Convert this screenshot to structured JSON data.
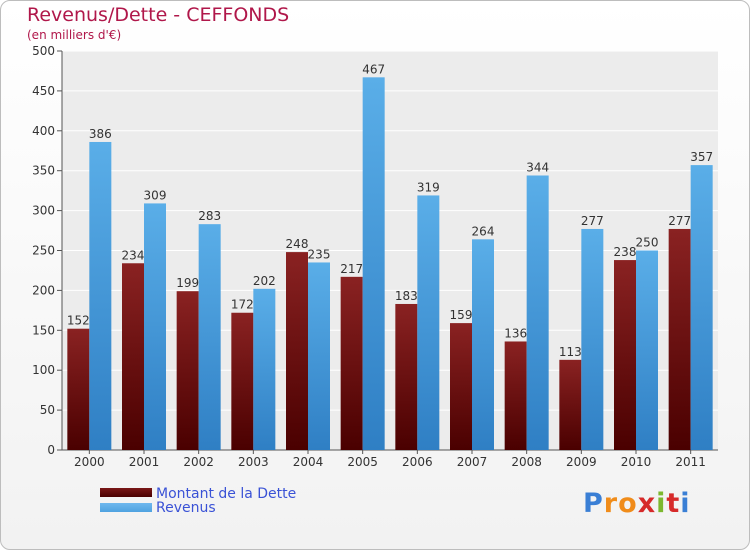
{
  "chart_data": {
    "type": "bar",
    "title": "Revenus/Dette - CEFFONDS",
    "subtitle": "(en milliers d'€)",
    "categories": [
      "2000",
      "2001",
      "2002",
      "2003",
      "2004",
      "2005",
      "2006",
      "2007",
      "2008",
      "2009",
      "2010",
      "2011"
    ],
    "series": [
      {
        "name": "Montant de la Dette",
        "color": "#7a1717",
        "values": [
          152,
          234,
          199,
          172,
          248,
          217,
          183,
          159,
          136,
          113,
          238,
          277
        ]
      },
      {
        "name": "Revenus",
        "color": "#4fa2e0",
        "values": [
          386,
          309,
          283,
          202,
          235,
          467,
          319,
          264,
          344,
          277,
          250,
          357
        ]
      }
    ],
    "ylim": [
      0,
      500
    ],
    "yticks": [
      0,
      50,
      100,
      150,
      200,
      250,
      300,
      350,
      400,
      450,
      500
    ],
    "grid": true,
    "legend": "bottom-left"
  },
  "logo": {
    "letters": [
      "P",
      "r",
      "o",
      "x",
      "i",
      "t",
      "i"
    ],
    "colors": [
      "#3a7fd5",
      "#f08c1a",
      "#f08c1a",
      "#d62a2a",
      "#7cb82f",
      "#d62a2a",
      "#3a7fd5"
    ]
  }
}
